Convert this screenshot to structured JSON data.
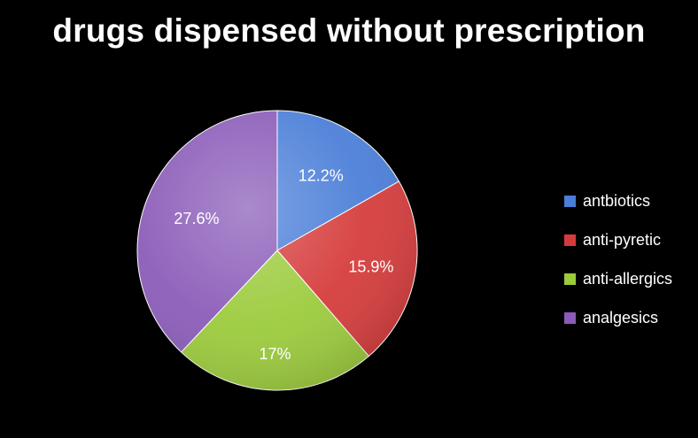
{
  "chart_data": {
    "type": "pie",
    "title": "drugs dispensed without prescription",
    "legend_position": "right",
    "slices": [
      {
        "name": "antbiotics",
        "value": 12.2,
        "label": "12.2%",
        "color": "#4a7ed8"
      },
      {
        "name": "anti-pyretic",
        "value": 15.9,
        "label": "15.9%",
        "color": "#d63b3b"
      },
      {
        "name": "anti-allergics",
        "value": 17,
        "label": "17%",
        "color": "#9bcb3b"
      },
      {
        "name": "analgesics",
        "value": 27.6,
        "label": "27.6%",
        "color": "#8a5bb8"
      }
    ]
  }
}
